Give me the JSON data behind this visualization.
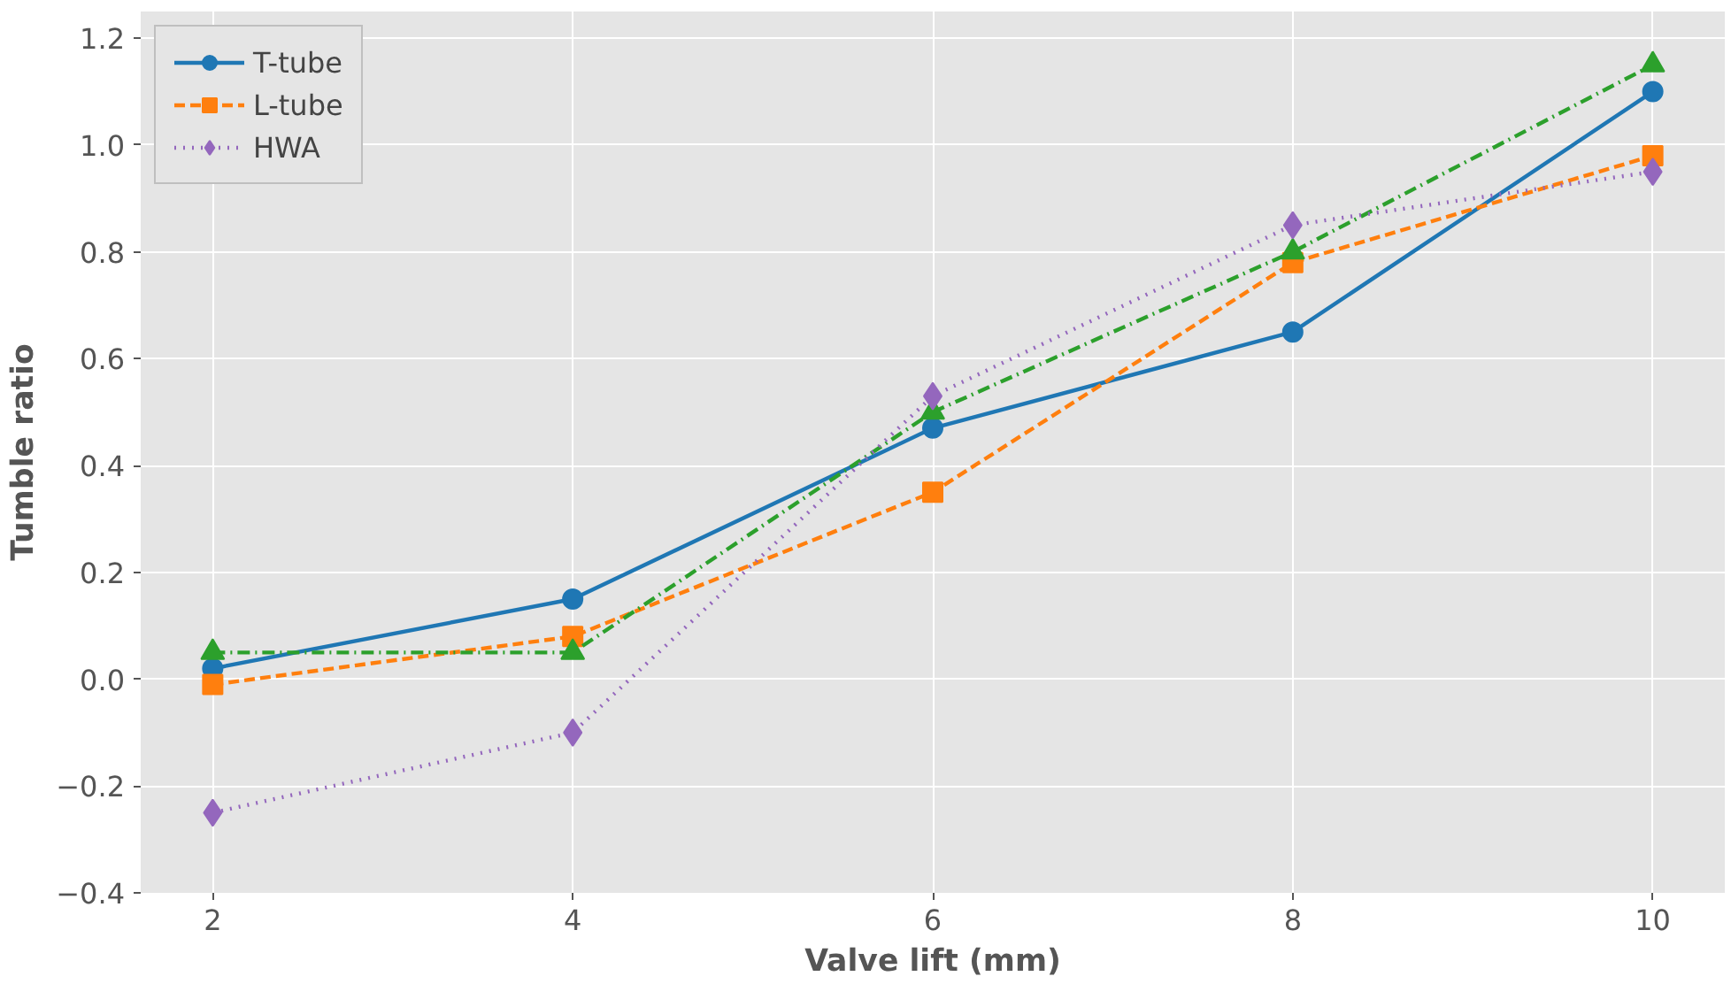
{
  "chart_data": {
    "type": "line",
    "xlabel": "Valve lift (mm)",
    "ylabel": "Tumble ratio",
    "x": [
      2,
      4,
      6,
      8,
      10
    ],
    "series": [
      {
        "name": "T-tube",
        "color": "#1f77b4",
        "marker": "circle",
        "line_style": "solid",
        "values": [
          0.02,
          0.15,
          0.47,
          0.65,
          1.1
        ]
      },
      {
        "name": "L-tube",
        "color": "#ff7f0e",
        "marker": "square",
        "line_style": "dashed",
        "values": [
          -0.01,
          0.08,
          0.35,
          0.78,
          0.98
        ]
      },
      {
        "color": "#2ca02c",
        "marker": "triangle",
        "line_style": "dashdot",
        "values": [
          0.05,
          0.05,
          0.5,
          0.8,
          1.15
        ]
      },
      {
        "name": "HWA",
        "color": "#9467bd",
        "marker": "diamond",
        "line_style": "dotted",
        "values": [
          -0.25,
          -0.1,
          0.53,
          0.85,
          0.95
        ]
      }
    ],
    "xlim": [
      1.6,
      10.4
    ],
    "xticks": [
      2,
      4,
      6,
      8,
      10
    ],
    "ylim": [
      -0.4,
      1.25
    ],
    "yticks": [
      {
        "value": -0.4,
        "label": "−0.4"
      },
      {
        "value": -0.2,
        "label": "−0.2"
      },
      {
        "value": 0,
        "label": "0.0"
      },
      {
        "value": 0.2,
        "label": "0.2"
      },
      {
        "value": 0.4,
        "label": "0.4"
      },
      {
        "value": 0.6,
        "label": "0.6"
      },
      {
        "value": 0.8,
        "label": "0.8"
      },
      {
        "value": 1.0,
        "label": "1.0"
      },
      {
        "value": 1.2,
        "label": "1.2"
      }
    ],
    "grid": true,
    "legend": "top left"
  }
}
